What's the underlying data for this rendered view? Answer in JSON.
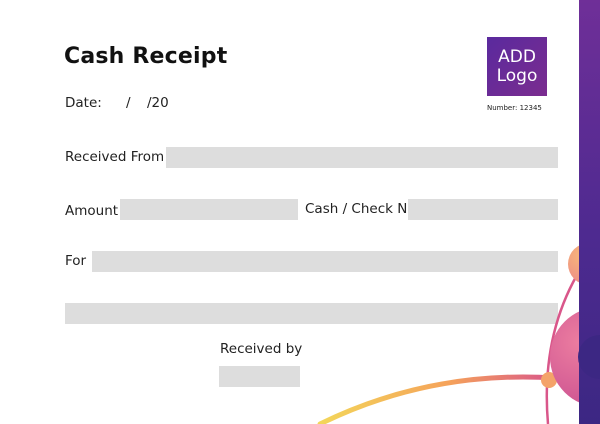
{
  "receipt": {
    "title": "Cash Receipt",
    "date_label": "Date:",
    "date_separator_1": "/",
    "date_separator_2": "/20",
    "received_from_label": "Received From",
    "amount_label": "Amount",
    "cash_check_label": "Cash / Check No.",
    "for_label": "For",
    "received_by_label": "Received by"
  },
  "logo": {
    "line1": "ADD",
    "line2": "Logo",
    "number_text": "Number: 12345"
  },
  "colors": {
    "accent_purple": "#5a2a9e",
    "accent_pink": "#d9568a",
    "accent_orange": "#f5a25a",
    "accent_yellow": "#f3d65a",
    "field_gray": "#dddddd"
  }
}
